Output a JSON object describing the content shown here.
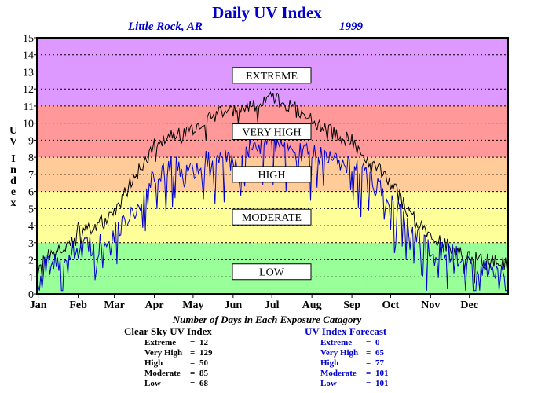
{
  "header": {
    "title": "Daily UV Index",
    "location": "Little Rock, AR",
    "year": "1999"
  },
  "chart_data": {
    "type": "line",
    "title": "Daily UV Index",
    "xlabel": "",
    "ylabel": "UV Index",
    "ylim": [
      0,
      15
    ],
    "yticks": [
      0,
      1,
      2,
      3,
      4,
      5,
      6,
      7,
      8,
      9,
      10,
      11,
      12,
      13,
      14,
      15
    ],
    "xlim": [
      0,
      365
    ],
    "month_labels": [
      "Jan",
      "Feb",
      "Mar",
      "Apr",
      "May",
      "Jun",
      "Jul",
      "Aug",
      "Sep",
      "Oct",
      "Nov",
      "Dec"
    ],
    "month_starts": [
      1,
      32,
      60,
      91,
      121,
      152,
      182,
      213,
      244,
      274,
      305,
      335
    ],
    "grid": true,
    "bands": [
      {
        "label": "LOW",
        "from": 0,
        "to": 3,
        "color": "#99ff99",
        "label_at": 1.3
      },
      {
        "label": "MODERATE",
        "from": 3,
        "to": 6,
        "color": "#ffff99",
        "label_at": 4.5
      },
      {
        "label": "HIGH",
        "from": 6,
        "to": 8,
        "color": "#ffcc99",
        "label_at": 7.0
      },
      {
        "label": "VERY HIGH",
        "from": 8,
        "to": 11,
        "color": "#ff9999",
        "label_at": 9.5
      },
      {
        "label": "EXTREME",
        "from": 11,
        "to": 15,
        "color": "#dd99ff",
        "label_at": 12.8
      }
    ],
    "series": [
      {
        "name": "Clear Sky UV Index",
        "color": "#000000",
        "x": [
          1,
          15,
          30,
          32,
          35,
          45,
          60,
          75,
          91,
          105,
          121,
          140,
          152,
          165,
          175,
          182,
          190,
          200,
          213,
          225,
          244,
          260,
          274,
          290,
          305,
          320,
          335,
          350,
          365
        ],
        "values": [
          1.9,
          2.4,
          3.2,
          3.8,
          3.6,
          3.9,
          4.9,
          6.7,
          8.7,
          9.3,
          9.6,
          10.6,
          10.6,
          11.0,
          11.3,
          11.5,
          11.2,
          10.8,
          10.2,
          9.6,
          8.9,
          7.6,
          6.5,
          4.6,
          3.3,
          2.8,
          2.1,
          1.9,
          1.8
        ]
      },
      {
        "name": "UV Index Forecast",
        "color": "#0000cc",
        "x": [
          1,
          15,
          30,
          45,
          60,
          75,
          91,
          105,
          121,
          140,
          152,
          165,
          175,
          182,
          190,
          200,
          213,
          225,
          244,
          260,
          274,
          290,
          305,
          320,
          335,
          350,
          365
        ],
        "values": [
          1.5,
          1.8,
          2.6,
          2.8,
          3.5,
          4.8,
          6.8,
          7.5,
          7.2,
          8.2,
          7.6,
          8.6,
          8.6,
          8.9,
          8.6,
          8.3,
          8.4,
          8.1,
          7.8,
          6.5,
          5.4,
          3.9,
          2.4,
          2.5,
          1.6,
          1.4,
          1.3
        ]
      }
    ]
  },
  "counts": {
    "heading": "Number of Days in Each Exposure Catagory",
    "clear": {
      "title": "Clear Sky UV Index",
      "rows": [
        {
          "label": "Extreme",
          "value": "12"
        },
        {
          "label": "Very High",
          "value": "129"
        },
        {
          "label": "High",
          "value": "50"
        },
        {
          "label": "Moderate",
          "value": "85"
        },
        {
          "label": "Low",
          "value": "68"
        }
      ]
    },
    "forecast": {
      "title": "UV Index Forecast",
      "rows": [
        {
          "label": "Extreme",
          "value": "0"
        },
        {
          "label": "Very High",
          "value": "65"
        },
        {
          "label": "High",
          "value": "77"
        },
        {
          "label": "Moderate",
          "value": "101"
        },
        {
          "label": "Low",
          "value": "101"
        }
      ]
    }
  }
}
